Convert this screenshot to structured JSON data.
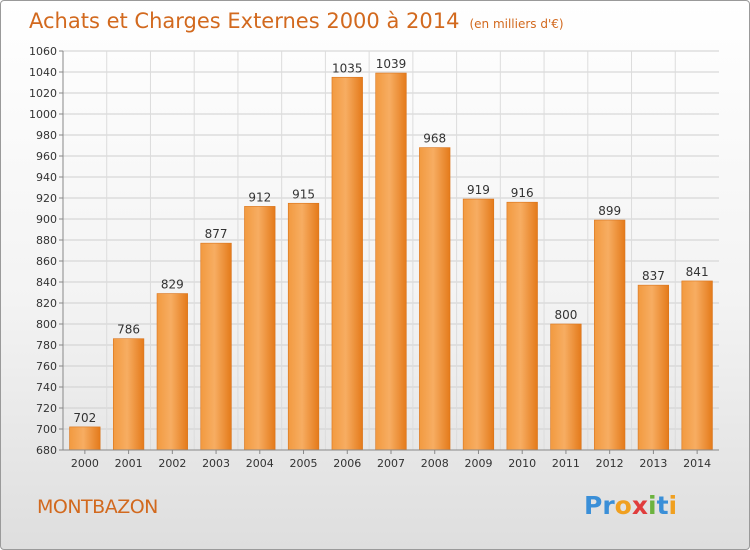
{
  "header": {
    "title": "Achats et Charges Externes 2000 à 2014",
    "unit": "(en milliers d'€)"
  },
  "footer": {
    "city": "MONTBAZON",
    "logo": {
      "letters": [
        "P",
        "r",
        "o",
        "x",
        "i",
        "t",
        "i"
      ],
      "colors": [
        "#3a8fd8",
        "#3a8fd8",
        "#f0a020",
        "#e03c3c",
        "#6cb33f",
        "#3a8fd8",
        "#f0a020"
      ]
    }
  },
  "colors": {
    "bar": "#f28c28",
    "bar_light": "#f7a55a",
    "bar_dark": "#e07410",
    "text": "#d2691e"
  },
  "chart_data": {
    "type": "bar",
    "categories": [
      "2000",
      "2001",
      "2002",
      "2003",
      "2004",
      "2005",
      "2006",
      "2007",
      "2008",
      "2009",
      "2010",
      "2011",
      "2012",
      "2013",
      "2014"
    ],
    "values": [
      702,
      786,
      829,
      877,
      912,
      915,
      1035,
      1039,
      968,
      919,
      916,
      800,
      899,
      837,
      841
    ],
    "ylim": [
      680,
      1060
    ],
    "yticks": [
      680,
      700,
      720,
      740,
      760,
      780,
      800,
      820,
      840,
      860,
      880,
      900,
      920,
      940,
      960,
      980,
      1000,
      1020,
      1040,
      1060
    ],
    "grid": true,
    "legend": "none",
    "data_labels": true
  }
}
